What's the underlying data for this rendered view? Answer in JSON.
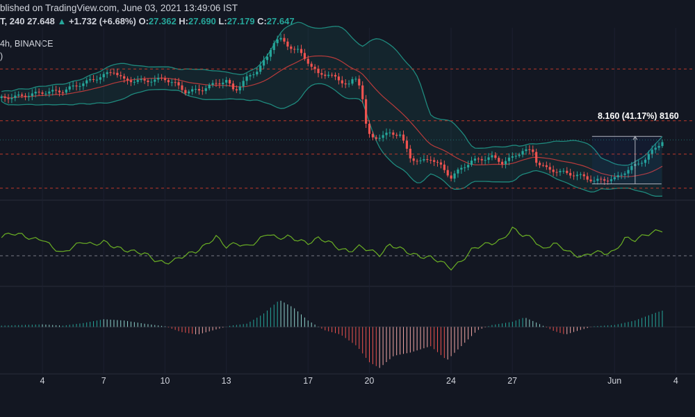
{
  "header": {
    "published": "blished on TradingView.com, June 03, 2021 13:49:06 IST",
    "symbol_tail": "T,",
    "interval": "240",
    "last": "27.648",
    "arrow": "▲",
    "change": "+1.732 (+6.68%)",
    "o_label": "O:",
    "o_value": "27.362",
    "h_label": "H:",
    "h_value": "27.690",
    "l_label": "L:",
    "l_value": "27.179",
    "c_label": "C:",
    "c_value": "27.647"
  },
  "legend": {
    "line1": "4h, BINANCE",
    "line2": ")"
  },
  "measure": {
    "label": "8.160 (41.17%) 8160"
  },
  "colors": {
    "background": "#131722",
    "up": "#26a69a",
    "down": "#ef5350",
    "bb_band": "#1f8a7e",
    "bb_basis": "#b83b3b",
    "rsi": "#6bb024",
    "hist_up": "#26a69a",
    "hist_down": "#ef5350",
    "level": "#c0392b"
  },
  "chart_data": {
    "type": "candlestick",
    "x_ticks": [
      {
        "label": "4",
        "day": 4
      },
      {
        "label": "7",
        "day": 7
      },
      {
        "label": "10",
        "day": 10
      },
      {
        "label": "13",
        "day": 13
      },
      {
        "label": "17",
        "day": 17
      },
      {
        "label": "20",
        "day": 20
      },
      {
        "label": "24",
        "day": 24
      },
      {
        "label": "27",
        "day": 27
      },
      {
        "label": "Jun",
        "day": 32
      },
      {
        "label": "4",
        "day": 35
      }
    ],
    "price_keypoints": [
      [
        2.0,
        20.1
      ],
      [
        3.0,
        20.4
      ],
      [
        4.0,
        20.9
      ],
      [
        5.0,
        21.1
      ],
      [
        5.5,
        21.7
      ],
      [
        6.0,
        22.2
      ],
      [
        7.0,
        23.3
      ],
      [
        7.5,
        23.9
      ],
      [
        8.0,
        22.6
      ],
      [
        9.0,
        22.5
      ],
      [
        10.0,
        22.8
      ],
      [
        10.5,
        22.1
      ],
      [
        11.0,
        21.0
      ],
      [
        11.8,
        21.3
      ],
      [
        12.5,
        22.2
      ],
      [
        13.0,
        22.5
      ],
      [
        13.4,
        21.1
      ],
      [
        14.0,
        22.9
      ],
      [
        14.5,
        24.0
      ],
      [
        15.0,
        25.8
      ],
      [
        15.3,
        28.0
      ],
      [
        15.6,
        28.5
      ],
      [
        16.0,
        27.5
      ],
      [
        16.5,
        26.8
      ],
      [
        17.0,
        25.2
      ],
      [
        17.5,
        23.4
      ],
      [
        18.0,
        23.5
      ],
      [
        18.5,
        22.6
      ],
      [
        19.0,
        22.0
      ],
      [
        19.3,
        22.9
      ],
      [
        19.6,
        21.7
      ],
      [
        19.9,
        15.0
      ],
      [
        20.2,
        14.4
      ],
      [
        20.6,
        14.8
      ],
      [
        21.0,
        15.1
      ],
      [
        21.5,
        15.0
      ],
      [
        22.0,
        11.7
      ],
      [
        22.5,
        11.1
      ],
      [
        23.0,
        11.6
      ],
      [
        23.5,
        10.5
      ],
      [
        24.0,
        8.9
      ],
      [
        24.5,
        10.2
      ],
      [
        25.0,
        11.2
      ],
      [
        26.0,
        11.8
      ],
      [
        26.5,
        11.0
      ],
      [
        27.0,
        11.7
      ],
      [
        27.5,
        12.7
      ],
      [
        28.0,
        12.6
      ],
      [
        28.2,
        11.0
      ],
      [
        28.7,
        10.1
      ],
      [
        29.5,
        9.6
      ],
      [
        30.0,
        9.3
      ],
      [
        30.5,
        9.0
      ],
      [
        31.0,
        8.4
      ],
      [
        31.5,
        8.6
      ],
      [
        32.0,
        8.7
      ],
      [
        32.5,
        9.7
      ],
      [
        33.0,
        10.6
      ],
      [
        33.5,
        11.5
      ],
      [
        34.0,
        13.1
      ],
      [
        34.4,
        14.2
      ]
    ],
    "price_range": [
      6,
      30
    ],
    "levels": [
      24.2,
      16.9,
      12.2,
      7.4
    ],
    "current_price_line": 14.2,
    "measure_range": {
      "from_day": 30.9,
      "to_day": 34.3,
      "from_price": 8.0,
      "to_price": 14.7
    },
    "rsi_keypoints": [
      [
        2.0,
        58
      ],
      [
        2.5,
        62
      ],
      [
        3.0,
        60
      ],
      [
        3.5,
        55
      ],
      [
        4.0,
        55
      ],
      [
        4.5,
        45
      ],
      [
        5.0,
        38
      ],
      [
        5.5,
        46
      ],
      [
        6.0,
        52
      ],
      [
        6.5,
        48
      ],
      [
        7.0,
        52
      ],
      [
        7.5,
        46
      ],
      [
        8.0,
        42
      ],
      [
        8.5,
        40
      ],
      [
        9.0,
        38
      ],
      [
        9.5,
        30
      ],
      [
        10.0,
        26
      ],
      [
        10.5,
        30
      ],
      [
        11.0,
        36
      ],
      [
        11.5,
        40
      ],
      [
        12.0,
        48
      ],
      [
        12.5,
        58
      ],
      [
        13.0,
        46
      ],
      [
        13.5,
        50
      ],
      [
        14.0,
        46
      ],
      [
        14.5,
        52
      ],
      [
        15.0,
        62
      ],
      [
        15.5,
        56
      ],
      [
        16.0,
        58
      ],
      [
        16.5,
        54
      ],
      [
        17.0,
        50
      ],
      [
        17.5,
        56
      ],
      [
        18.0,
        52
      ],
      [
        18.5,
        44
      ],
      [
        19.0,
        40
      ],
      [
        19.5,
        46
      ],
      [
        20.0,
        42
      ],
      [
        20.5,
        36
      ],
      [
        21.0,
        48
      ],
      [
        21.5,
        44
      ],
      [
        22.0,
        38
      ],
      [
        22.5,
        34
      ],
      [
        23.0,
        33
      ],
      [
        23.5,
        28
      ],
      [
        24.0,
        20
      ],
      [
        24.5,
        28
      ],
      [
        25.0,
        42
      ],
      [
        25.5,
        48
      ],
      [
        26.0,
        50
      ],
      [
        26.5,
        54
      ],
      [
        27.0,
        68
      ],
      [
        27.5,
        60
      ],
      [
        28.0,
        56
      ],
      [
        28.5,
        42
      ],
      [
        29.0,
        50
      ],
      [
        29.5,
        44
      ],
      [
        30.0,
        36
      ],
      [
        30.5,
        34
      ],
      [
        31.0,
        40
      ],
      [
        31.5,
        38
      ],
      [
        32.0,
        40
      ],
      [
        32.5,
        56
      ],
      [
        33.0,
        54
      ],
      [
        33.5,
        60
      ],
      [
        34.0,
        64
      ],
      [
        34.4,
        66
      ]
    ],
    "rsi_range": [
      0,
      100
    ],
    "rsi_mid": 35,
    "hist_keypoints": [
      [
        2.0,
        0.02
      ],
      [
        3.0,
        0.03
      ],
      [
        4.0,
        0.04
      ],
      [
        5.0,
        0.02
      ],
      [
        6.0,
        0.06
      ],
      [
        7.0,
        0.12
      ],
      [
        8.0,
        0.1
      ],
      [
        9.0,
        0.05
      ],
      [
        10.0,
        0.01
      ],
      [
        10.8,
        -0.08
      ],
      [
        11.6,
        -0.12
      ],
      [
        12.5,
        -0.04
      ],
      [
        13.2,
        0.02
      ],
      [
        14.0,
        0.05
      ],
      [
        14.8,
        0.2
      ],
      [
        15.6,
        0.42
      ],
      [
        16.3,
        0.3
      ],
      [
        17.0,
        0.1
      ],
      [
        17.8,
        -0.05
      ],
      [
        18.6,
        -0.12
      ],
      [
        19.4,
        -0.3
      ],
      [
        20.0,
        -0.55
      ],
      [
        20.5,
        -0.64
      ],
      [
        21.2,
        -0.45
      ],
      [
        22.0,
        -0.4
      ],
      [
        23.0,
        -0.3
      ],
      [
        23.8,
        -0.52
      ],
      [
        24.5,
        -0.3
      ],
      [
        25.3,
        -0.05
      ],
      [
        26.0,
        0.03
      ],
      [
        27.0,
        0.08
      ],
      [
        27.6,
        0.15
      ],
      [
        28.3,
        0.05
      ],
      [
        29.0,
        -0.06
      ],
      [
        29.6,
        -0.12
      ],
      [
        30.3,
        -0.05
      ],
      [
        31.0,
        0.01
      ],
      [
        32.0,
        0.03
      ],
      [
        33.0,
        0.1
      ],
      [
        34.0,
        0.22
      ],
      [
        34.4,
        0.26
      ]
    ],
    "hist_range": [
      -0.7,
      0.6
    ]
  }
}
